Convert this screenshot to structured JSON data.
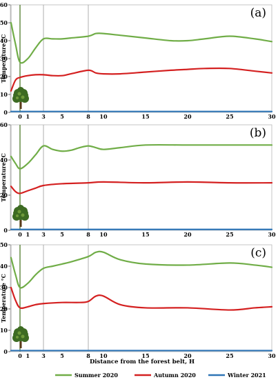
{
  "chart_data": {
    "type": "line",
    "xlabel": "Distance from the forest belt, H",
    "ylabel": "Temperature °C",
    "x_ticks": [
      "1",
      "0",
      "3",
      "5",
      "8",
      "10",
      "15",
      "20",
      "25",
      "30"
    ],
    "legend": [
      {
        "name": "Summer 2020",
        "color": "#70ad47"
      },
      {
        "name": "Autumn 2020",
        "color": "#d42020"
      },
      {
        "name": "Winter 2021",
        "color": "#2e75b6"
      }
    ],
    "legend_position": "bottom",
    "panels": [
      {
        "label": "(a)",
        "ylim": [
          0,
          60
        ],
        "y_ticks": [
          "0",
          "10",
          "20",
          "30",
          "40",
          "50",
          "60"
        ],
        "series": [
          {
            "name": "Summer 2020",
            "points": [
              [
                -1,
                50
              ],
              [
                -0.5,
                38
              ],
              [
                0,
                28
              ],
              [
                1,
                30
              ],
              [
                2,
                36
              ],
              [
                3,
                41
              ],
              [
                4,
                41
              ],
              [
                5,
                41
              ],
              [
                6,
                41.5
              ],
              [
                8,
                42.5
              ],
              [
                9,
                44
              ],
              [
                10,
                44
              ],
              [
                12,
                43
              ],
              [
                15,
                41.5
              ],
              [
                18,
                40
              ],
              [
                20,
                40
              ],
              [
                22,
                41
              ],
              [
                25,
                42.5
              ],
              [
                28,
                41
              ],
              [
                30,
                39.5
              ]
            ]
          },
          {
            "name": "Autumn 2020",
            "points": [
              [
                -1,
                12
              ],
              [
                -0.5,
                18
              ],
              [
                0,
                19.5
              ],
              [
                1,
                20.5
              ],
              [
                2,
                21
              ],
              [
                3,
                21
              ],
              [
                4,
                20.5
              ],
              [
                5,
                20.5
              ],
              [
                6,
                21.5
              ],
              [
                8,
                23.5
              ],
              [
                9,
                22
              ],
              [
                10,
                21.5
              ],
              [
                12,
                21.5
              ],
              [
                15,
                22.5
              ],
              [
                18,
                23.5
              ],
              [
                20,
                24
              ],
              [
                22,
                24.5
              ],
              [
                25,
                24.5
              ],
              [
                28,
                23
              ],
              [
                30,
                22
              ]
            ]
          },
          {
            "name": "Winter 2021",
            "points": [
              [
                -1,
                0.5
              ],
              [
                0,
                0.5
              ],
              [
                3,
                0.5
              ],
              [
                5,
                0.5
              ],
              [
                8,
                0.5
              ],
              [
                10,
                0.5
              ],
              [
                15,
                0.5
              ],
              [
                20,
                0.5
              ],
              [
                25,
                0.5
              ],
              [
                30,
                0.5
              ]
            ]
          }
        ]
      },
      {
        "label": "(b)",
        "ylim": [
          0,
          60
        ],
        "y_ticks": [
          "0",
          "20",
          "40",
          "60"
        ],
        "series": [
          {
            "name": "Summer 2020",
            "points": [
              [
                -1,
                42
              ],
              [
                -0.5,
                38
              ],
              [
                0,
                35
              ],
              [
                1,
                38
              ],
              [
                2,
                43
              ],
              [
                3,
                48
              ],
              [
                4,
                46
              ],
              [
                5,
                45
              ],
              [
                6,
                45.5
              ],
              [
                7,
                47
              ],
              [
                8,
                48
              ],
              [
                9,
                47
              ],
              [
                10,
                46
              ],
              [
                12,
                47
              ],
              [
                15,
                48.5
              ],
              [
                20,
                48.5
              ],
              [
                25,
                48.5
              ],
              [
                30,
                48.5
              ]
            ]
          },
          {
            "name": "Autumn 2020",
            "points": [
              [
                -1,
                25
              ],
              [
                -0.5,
                22
              ],
              [
                0,
                21
              ],
              [
                1,
                22.5
              ],
              [
                2,
                24
              ],
              [
                3,
                25.5
              ],
              [
                5,
                26.5
              ],
              [
                8,
                27
              ],
              [
                10,
                27.5
              ],
              [
                15,
                27
              ],
              [
                20,
                27.5
              ],
              [
                25,
                27
              ],
              [
                30,
                27
              ]
            ]
          },
          {
            "name": "Winter 2021",
            "points": [
              [
                -1,
                0.5
              ],
              [
                0,
                0.5
              ],
              [
                5,
                0.5
              ],
              [
                8,
                0.5
              ],
              [
                10,
                0.5
              ],
              [
                15,
                0.5
              ],
              [
                20,
                0.5
              ],
              [
                25,
                0.5
              ],
              [
                30,
                0.5
              ]
            ]
          }
        ]
      },
      {
        "label": "(c)",
        "ylim": [
          0,
          50
        ],
        "y_ticks": [
          "0",
          "10",
          "20",
          "30",
          "40",
          "50"
        ],
        "series": [
          {
            "name": "Summer 2020",
            "points": [
              [
                -1,
                44
              ],
              [
                -0.5,
                36
              ],
              [
                0,
                30
              ],
              [
                1,
                32
              ],
              [
                2,
                36
              ],
              [
                3,
                39
              ],
              [
                4,
                40
              ],
              [
                5,
                41
              ],
              [
                6,
                42
              ],
              [
                8,
                44.5
              ],
              [
                9,
                46.5
              ],
              [
                10,
                46.5
              ],
              [
                12,
                43
              ],
              [
                15,
                41
              ],
              [
                20,
                40.5
              ],
              [
                25,
                41.5
              ],
              [
                28,
                40.5
              ],
              [
                30,
                39.5
              ]
            ]
          },
          {
            "name": "Autumn 2020",
            "points": [
              [
                -1,
                30
              ],
              [
                -0.5,
                24
              ],
              [
                0,
                20.5
              ],
              [
                1,
                21
              ],
              [
                2,
                22
              ],
              [
                3,
                22.5
              ],
              [
                5,
                23
              ],
              [
                7,
                23
              ],
              [
                8,
                23.5
              ],
              [
                9,
                26
              ],
              [
                10,
                26
              ],
              [
                12,
                22
              ],
              [
                15,
                20.5
              ],
              [
                20,
                20.5
              ],
              [
                25,
                19.5
              ],
              [
                28,
                20.5
              ],
              [
                30,
                21
              ]
            ]
          },
          {
            "name": "Winter 2021",
            "points": [
              [
                -1,
                0.5
              ],
              [
                0,
                0.5
              ],
              [
                5,
                0.5
              ],
              [
                10,
                0.5
              ],
              [
                15,
                0.5
              ],
              [
                20,
                0.5
              ],
              [
                25,
                0.5
              ],
              [
                30,
                0.5
              ]
            ]
          }
        ]
      }
    ]
  }
}
